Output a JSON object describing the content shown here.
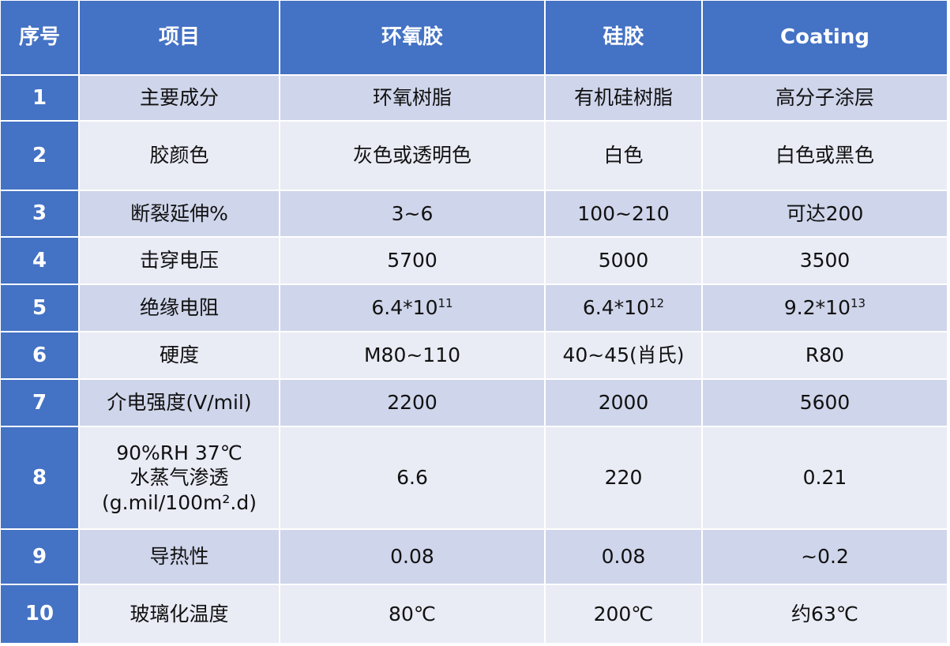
{
  "table": {
    "header": [
      "序号",
      "项目",
      "环氧胶",
      "硅胶",
      "Coating"
    ],
    "rows": [
      [
        "1",
        "主要成分",
        "环氧树脂",
        "有机硅树脂",
        "高分子涂层"
      ],
      [
        "2",
        "胶颜色",
        "灰色或透明色",
        "白色",
        "白色或黑色"
      ],
      [
        "3",
        "断裂延伸%",
        "3~6",
        "100~210",
        "可达200"
      ],
      [
        "4",
        "击穿电压",
        "5700",
        "5000",
        "3500"
      ],
      [
        "5",
        "绝缘电阻",
        {
          "text": "6.4*10",
          "sup": "11"
        },
        {
          "text": "6.4*10",
          "sup": "12"
        },
        {
          "text": "9.2*10",
          "sup": "13"
        }
      ],
      [
        "6",
        "硬度",
        "M80~110",
        "40~45(肖氏)",
        "R80"
      ],
      [
        "7",
        "介电强度(V/mil)",
        "2200",
        "2000",
        "5600"
      ],
      [
        "8",
        {
          "lines": [
            "90%RH 37℃",
            "水蒸气渗透",
            "(g.mil/100m².d)"
          ]
        },
        "6.6",
        "220",
        "0.21"
      ],
      [
        "9",
        "导热性",
        "0.08",
        "0.08",
        "~0.2"
      ],
      [
        "10",
        "玻璃化温度",
        "80℃",
        "200℃",
        "约63℃"
      ]
    ]
  }
}
